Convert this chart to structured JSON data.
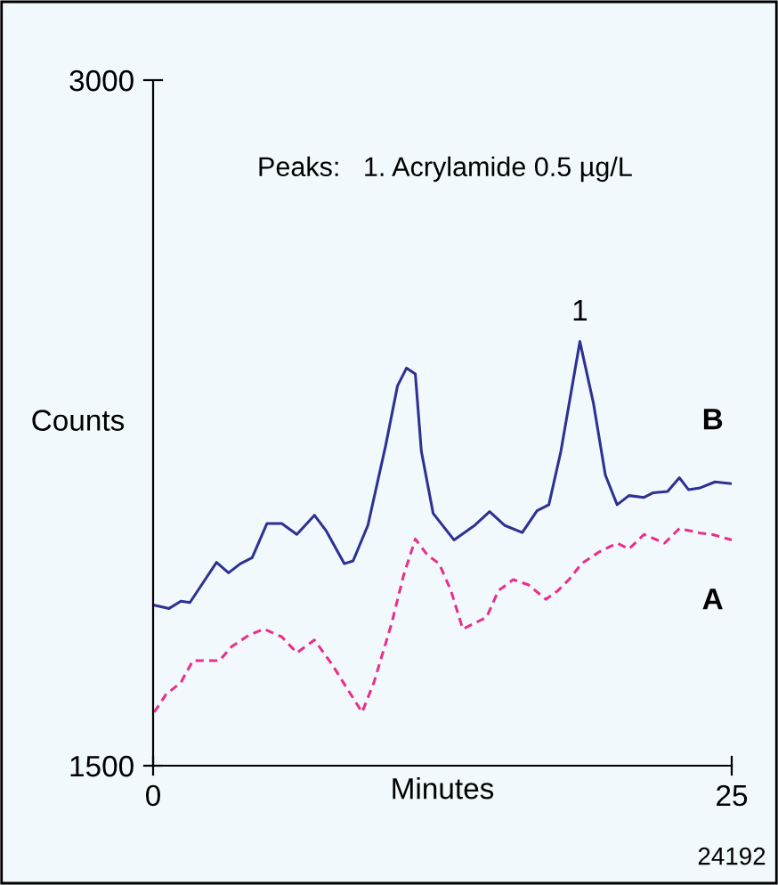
{
  "chart_data": {
    "type": "line",
    "xlabel": "Minutes",
    "ylabel": "Counts",
    "xlim": [
      0,
      25
    ],
    "xticks": [
      0,
      25
    ],
    "ylim": [
      1500,
      3000
    ],
    "yticks": [
      1500,
      3000
    ],
    "grid": false,
    "legend": false,
    "marker": "none",
    "annotations": [
      "Peaks:   1. Acrylamide 0.5 µg/L",
      {
        "text": "1",
        "x": 18.44,
        "y": 2428
      },
      "24192"
    ],
    "series": [
      {
        "name": "B",
        "color": "#2e3192",
        "line_style": "solid",
        "x": [
          0.05,
          0.69,
          1.2,
          1.59,
          2.1,
          2.74,
          3.26,
          3.77,
          4.28,
          4.92,
          5.56,
          6.21,
          6.97,
          7.49,
          8.26,
          8.64,
          9.28,
          10.05,
          10.56,
          10.95,
          11.33,
          11.59,
          12.1,
          13.0,
          13.9,
          14.54,
          15.18,
          15.95,
          16.59,
          17.1,
          17.62,
          18.44,
          19.03,
          19.54,
          20.05,
          20.56,
          21.21,
          21.59,
          22.23,
          22.74,
          23.13,
          23.64,
          24.28,
          25.0
        ],
        "values": [
          1851,
          1844,
          1860,
          1857,
          1896,
          1945,
          1922,
          1942,
          1955,
          2030,
          2030,
          2006,
          2048,
          2013,
          1942,
          1948,
          2026,
          2201,
          2331,
          2370,
          2357,
          2188,
          2052,
          1994,
          2026,
          2056,
          2026,
          2010,
          2058,
          2071,
          2188,
          2428,
          2292,
          2136,
          2071,
          2091,
          2087,
          2097,
          2100,
          2130,
          2104,
          2108,
          2121,
          2117
        ]
      },
      {
        "name": "A",
        "color": "#e8308a",
        "line_style": "dashed",
        "x": [
          0.05,
          0.56,
          1.2,
          1.72,
          2.87,
          3.38,
          4.15,
          4.79,
          5.56,
          6.21,
          6.97,
          7.74,
          8.38,
          9.03,
          9.54,
          10.31,
          10.82,
          11.33,
          11.85,
          12.36,
          12.87,
          13.38,
          13.9,
          14.41,
          14.92,
          15.56,
          16.21,
          16.97,
          17.49,
          18.0,
          18.51,
          19.28,
          20.05,
          20.56,
          21.21,
          22.1,
          22.74,
          23.64,
          24.15,
          25.0
        ],
        "values": [
          1617,
          1656,
          1682,
          1730,
          1730,
          1760,
          1786,
          1799,
          1782,
          1747,
          1775,
          1721,
          1669,
          1617,
          1682,
          1812,
          1916,
          1996,
          1961,
          1942,
          1883,
          1799,
          1812,
          1825,
          1883,
          1907,
          1896,
          1864,
          1883,
          1909,
          1942,
          1968,
          1987,
          1974,
          2006,
          1987,
          2019,
          2009,
          2006,
          1994
        ]
      }
    ]
  }
}
